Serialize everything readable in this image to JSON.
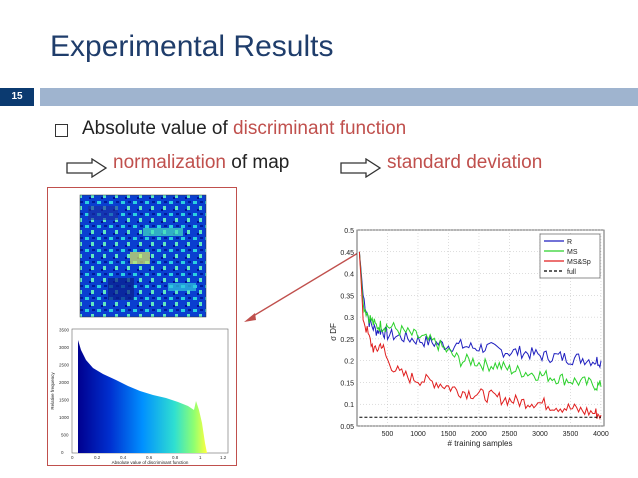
{
  "slide": {
    "title": "Experimental Results",
    "number": "15",
    "bullet": {
      "prefix": "Absolute value of ",
      "highlight": "discriminant function"
    },
    "flow": {
      "step1_highlight": "normalization",
      "step1_rest": " of map",
      "step2": "standard deviation"
    },
    "colors": {
      "title": "#1f3d6b",
      "accent_red": "#c0504d",
      "band": "#9fb4cf",
      "number_box": "#0b3a70"
    }
  },
  "histogram": {
    "xlabel": "Absolute value of discriminant function",
    "ylabel": "Relative frequency",
    "x_ticks": [
      "0",
      "0.2",
      "0.4",
      "0.6",
      "0.8",
      "1",
      "1.2"
    ],
    "y_ticks": [
      "0",
      "500",
      "1000",
      "1500",
      "2000",
      "2500",
      "3000",
      "3500"
    ]
  },
  "chart_data": {
    "type": "line",
    "xlabel": "# training samples",
    "ylabel": "σ DF",
    "xlim": [
      0,
      4050
    ],
    "ylim": [
      0.05,
      0.5
    ],
    "x_ticks": [
      "500",
      "1000",
      "1500",
      "2000",
      "2500",
      "3000",
      "3500",
      "4000"
    ],
    "y_ticks": [
      "0.05",
      "0.1",
      "0.15",
      "0.2",
      "0.25",
      "0.3",
      "0.35",
      "0.4",
      "0.45",
      "0.5"
    ],
    "legend_position": "top-right",
    "series": [
      {
        "name": "R",
        "color": "#1f1fbf",
        "x": [
          40,
          100,
          200,
          300,
          400,
          500,
          700,
          900,
          1100,
          1300,
          1500,
          1700,
          1900,
          2100,
          2300,
          2500,
          2700,
          2900,
          3100,
          3300,
          3500,
          3700,
          3900,
          4000
        ],
        "y": [
          0.45,
          0.35,
          0.29,
          0.27,
          0.27,
          0.26,
          0.255,
          0.25,
          0.245,
          0.24,
          0.235,
          0.235,
          0.23,
          0.23,
          0.225,
          0.22,
          0.22,
          0.215,
          0.21,
          0.21,
          0.205,
          0.205,
          0.2,
          0.2
        ]
      },
      {
        "name": "MS",
        "color": "#2bd12b",
        "x": [
          40,
          100,
          200,
          300,
          400,
          500,
          700,
          900,
          1100,
          1300,
          1500,
          1700,
          1900,
          2100,
          2300,
          2500,
          2700,
          2900,
          3100,
          3300,
          3500,
          3700,
          3900,
          4000
        ],
        "y": [
          0.45,
          0.33,
          0.3,
          0.28,
          0.28,
          0.28,
          0.27,
          0.26,
          0.25,
          0.24,
          0.22,
          0.2,
          0.2,
          0.19,
          0.19,
          0.18,
          0.175,
          0.17,
          0.165,
          0.16,
          0.155,
          0.15,
          0.145,
          0.14
        ]
      },
      {
        "name": "MS&Sp",
        "color": "#e01e1e",
        "x": [
          40,
          100,
          200,
          300,
          400,
          500,
          700,
          900,
          1100,
          1300,
          1500,
          1700,
          1900,
          2100,
          2300,
          2500,
          2700,
          2900,
          3100,
          3300,
          3500,
          3700,
          3900,
          4000
        ],
        "y": [
          0.45,
          0.3,
          0.25,
          0.22,
          0.24,
          0.2,
          0.17,
          0.16,
          0.155,
          0.15,
          0.14,
          0.13,
          0.125,
          0.12,
          0.115,
          0.11,
          0.105,
          0.105,
          0.1,
          0.095,
          0.09,
          0.085,
          0.08,
          0.075
        ]
      },
      {
        "name": "full",
        "color": "#000000",
        "dashed": true,
        "x": [
          40,
          4000
        ],
        "y": [
          0.07,
          0.07
        ]
      }
    ]
  }
}
